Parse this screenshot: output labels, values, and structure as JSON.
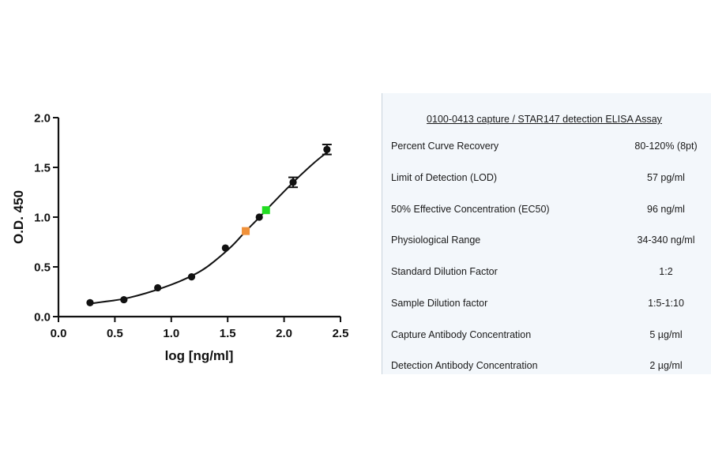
{
  "chart_data": {
    "type": "scatter",
    "xlabel": "log [ng/ml]",
    "ylabel": "O.D. 450",
    "xlim": [
      0.0,
      2.5
    ],
    "ylim": [
      0.0,
      2.0
    ],
    "x_ticks": [
      "0.0",
      "0.5",
      "1.0",
      "1.5",
      "2.0",
      "2.5"
    ],
    "y_ticks": [
      "0.0",
      "0.5",
      "1.0",
      "1.5",
      "2.0"
    ],
    "grid": false,
    "series": [
      {
        "marker": "circle",
        "color": "#111111",
        "points": [
          {
            "x": 0.28,
            "y": 0.14,
            "err": 0.0
          },
          {
            "x": 0.58,
            "y": 0.17,
            "err": 0.0
          },
          {
            "x": 0.88,
            "y": 0.29,
            "err": 0.0
          },
          {
            "x": 1.18,
            "y": 0.4,
            "err": 0.0
          },
          {
            "x": 1.48,
            "y": 0.69,
            "err": 0.0
          },
          {
            "x": 1.78,
            "y": 1.0,
            "err": 0.0
          },
          {
            "x": 2.08,
            "y": 1.35,
            "err": 0.05
          },
          {
            "x": 2.38,
            "y": 1.68,
            "err": 0.05
          }
        ]
      }
    ],
    "highlights": [
      {
        "x": 1.66,
        "y": 0.86,
        "color": "#f0913a"
      },
      {
        "x": 1.84,
        "y": 1.07,
        "color": "#22dd22"
      }
    ],
    "fit_curve": [
      [
        0.28,
        0.13
      ],
      [
        0.4,
        0.15
      ],
      [
        0.55,
        0.17
      ],
      [
        0.7,
        0.21
      ],
      [
        0.85,
        0.26
      ],
      [
        1.0,
        0.32
      ],
      [
        1.15,
        0.39
      ],
      [
        1.3,
        0.48
      ],
      [
        1.45,
        0.62
      ],
      [
        1.55,
        0.72
      ],
      [
        1.66,
        0.86
      ],
      [
        1.75,
        0.96
      ],
      [
        1.84,
        1.07
      ],
      [
        1.95,
        1.2
      ],
      [
        2.08,
        1.35
      ],
      [
        2.2,
        1.48
      ],
      [
        2.3,
        1.58
      ],
      [
        2.38,
        1.65
      ]
    ]
  },
  "table": {
    "title": "0100-0413 capture / STAR147 detection ELISA Assay",
    "rows": [
      {
        "label": "Percent Curve Recovery",
        "value": "80-120% (8pt)"
      },
      {
        "label": "Limit of Detection (LOD)",
        "value": "57 pg/ml"
      },
      {
        "label": "50% Effective Concentration (EC50)",
        "value": "96 ng/ml"
      },
      {
        "label": "Physiological Range",
        "value": "34-340 ng/ml"
      },
      {
        "label": "Standard Dilution Factor",
        "value": "1:2"
      },
      {
        "label": "Sample Dilution factor",
        "value": "1:5-1:10"
      },
      {
        "label": "Capture Antibody Concentration",
        "value": "5 µg/ml"
      },
      {
        "label": "Detection Antibody Concentration",
        "value": "2 µg/ml"
      }
    ]
  }
}
